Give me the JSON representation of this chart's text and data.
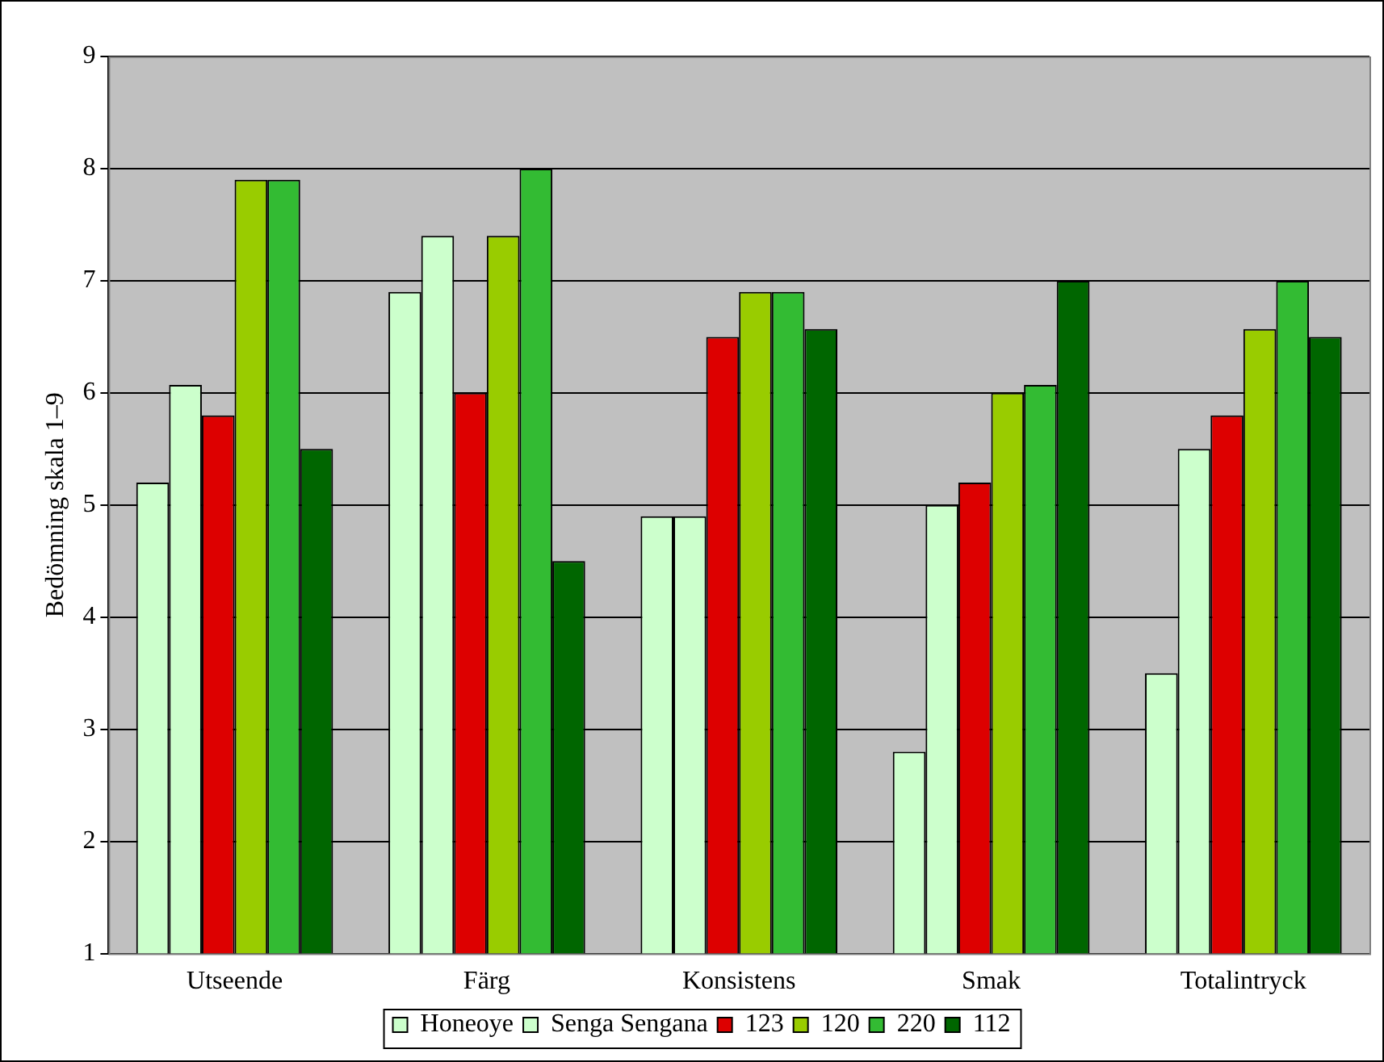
{
  "chart_data": {
    "type": "bar",
    "ylabel": "Bedömning skala 1–9",
    "categories": [
      "Utseende",
      "Färg",
      "Konsistens",
      "Smak",
      "Totalintryck"
    ],
    "series": [
      {
        "name": "Honeoye",
        "color": "#ccffcc",
        "values": [
          5.2,
          6.9,
          4.9,
          2.8,
          3.5
        ]
      },
      {
        "name": "Senga Sengana",
        "color": "#ccffcc",
        "values": [
          6.07,
          7.4,
          4.9,
          5.0,
          5.5
        ]
      },
      {
        "name": "123",
        "color": "#dd0000",
        "values": [
          5.8,
          6.0,
          6.5,
          5.2,
          5.8
        ]
      },
      {
        "name": "120",
        "color": "#99cc00",
        "values": [
          7.9,
          7.4,
          6.9,
          6.0,
          6.57
        ]
      },
      {
        "name": "220",
        "color": "#33bb33",
        "values": [
          7.9,
          8.0,
          6.9,
          6.07,
          7.0
        ]
      },
      {
        "name": "112",
        "color": "#006600",
        "values": [
          5.5,
          4.5,
          6.57,
          7.0,
          6.5
        ]
      }
    ],
    "ylim": [
      1,
      9
    ],
    "yticks": [
      1,
      2,
      3,
      4,
      5,
      6,
      7,
      8,
      9
    ],
    "grid": "y",
    "legend": "bottom"
  }
}
